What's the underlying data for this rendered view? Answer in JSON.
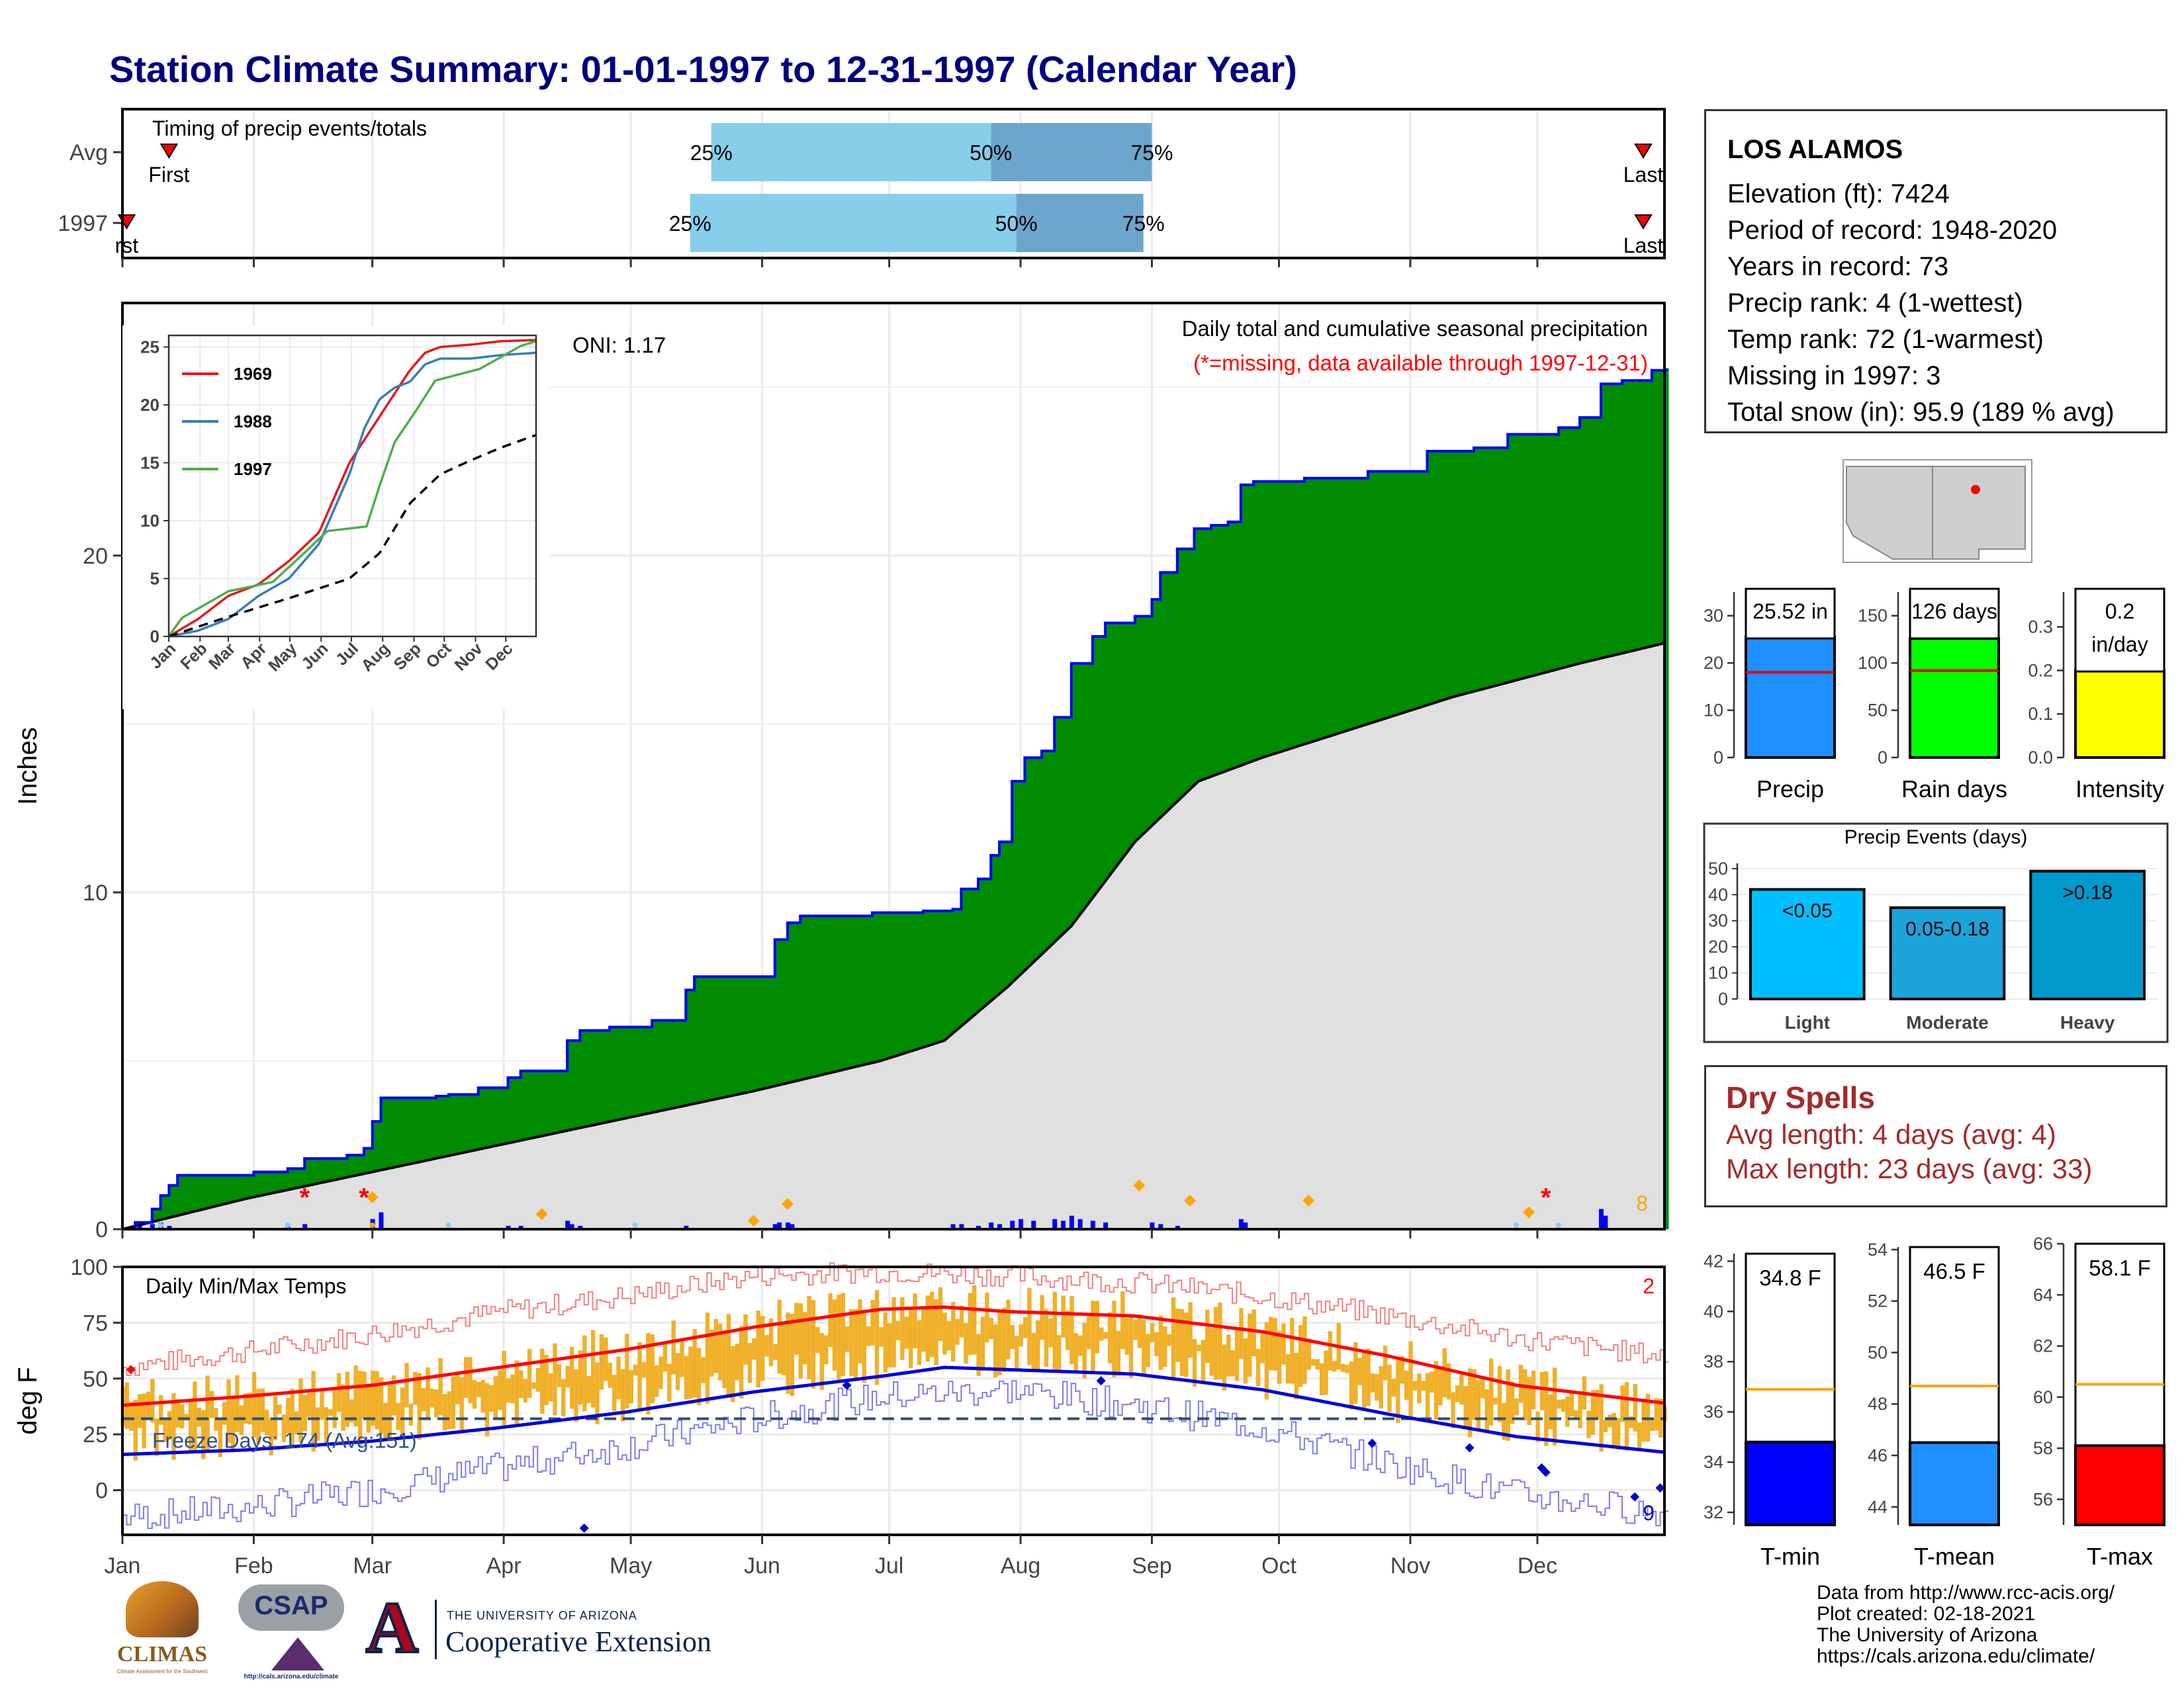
{
  "title": "Station Climate Summary: 01-01-1997 to 12-31-1997 (Calendar Year)",
  "months": [
    "Jan",
    "Feb",
    "Mar",
    "Apr",
    "May",
    "Jun",
    "Jul",
    "Aug",
    "Sep",
    "Oct",
    "Nov",
    "Dec"
  ],
  "timing": {
    "label": "Timing of precip events/totals",
    "rows": [
      {
        "name": "Avg",
        "first_label": "First",
        "last_label": "Last",
        "first_day": 12,
        "last_day": 360,
        "q25": 140,
        "q50": 206,
        "q75": 244,
        "q25_label": "25%",
        "q50_label": "50%",
        "q75_label": "75%"
      },
      {
        "name": "1997",
        "first_label": "rst",
        "last_label": "Last",
        "first_day": 2,
        "last_day": 360,
        "q25": 135,
        "q50": 212,
        "q75": 242,
        "q25_label": "25%",
        "q50_label": "50%",
        "q75_label": "75%"
      }
    ]
  },
  "precip": {
    "ylabel": "Inches",
    "subtitle": "Daily total and cumulative seasonal precipitation",
    "missing_note": "(*=missing, data available through 1997-12-31)",
    "oni_label": "ONI: 1.17",
    "corner_count": "8",
    "y_ticks": [
      "0",
      "10",
      "20"
    ]
  },
  "chart_data": [
    {
      "type": "area",
      "name": "cumulative-precip",
      "ylim": [
        0,
        27.5
      ],
      "xlim": [
        1,
        365
      ],
      "cumulative_1997": [
        [
          1,
          0
        ],
        [
          4,
          0.2
        ],
        [
          8,
          0.6
        ],
        [
          10,
          1.0
        ],
        [
          12,
          1.3
        ],
        [
          14,
          1.6
        ],
        [
          30,
          1.6
        ],
        [
          32,
          1.7
        ],
        [
          40,
          1.8
        ],
        [
          44,
          2.1
        ],
        [
          54,
          2.2
        ],
        [
          58,
          2.4
        ],
        [
          60,
          3.2
        ],
        [
          62,
          3.9
        ],
        [
          75,
          3.95
        ],
        [
          78,
          4.0
        ],
        [
          85,
          4.2
        ],
        [
          92,
          4.5
        ],
        [
          95,
          4.7
        ],
        [
          104,
          4.7
        ],
        [
          106,
          5.6
        ],
        [
          109,
          5.9
        ],
        [
          116,
          6.0
        ],
        [
          126,
          6.2
        ],
        [
          134,
          7.1
        ],
        [
          136,
          7.5
        ],
        [
          150,
          7.5
        ],
        [
          155,
          8.6
        ],
        [
          158,
          9.1
        ],
        [
          161,
          9.3
        ],
        [
          178,
          9.4
        ],
        [
          190,
          9.45
        ],
        [
          197,
          9.5
        ],
        [
          199,
          10.1
        ],
        [
          203,
          10.4
        ],
        [
          206,
          11.1
        ],
        [
          208,
          11.5
        ],
        [
          211,
          13.3
        ],
        [
          214,
          14.0
        ],
        [
          218,
          14.2
        ],
        [
          221,
          15.2
        ],
        [
          225,
          16.8
        ],
        [
          230,
          17.6
        ],
        [
          233,
          18.0
        ],
        [
          240,
          18.2
        ],
        [
          244,
          18.7
        ],
        [
          246,
          19.5
        ],
        [
          250,
          20.2
        ],
        [
          254,
          20.8
        ],
        [
          258,
          20.9
        ],
        [
          262,
          21.0
        ],
        [
          265,
          22.1
        ],
        [
          268,
          22.2
        ],
        [
          280,
          22.3
        ],
        [
          295,
          22.5
        ],
        [
          307,
          22.5
        ],
        [
          309,
          23.1
        ],
        [
          320,
          23.2
        ],
        [
          328,
          23.6
        ],
        [
          340,
          23.8
        ],
        [
          345,
          24.1
        ],
        [
          350,
          25.1
        ],
        [
          355,
          25.2
        ],
        [
          358,
          25.2
        ],
        [
          362,
          25.5
        ],
        [
          365,
          25.52
        ]
      ],
      "cumulative_avg": [
        [
          1,
          0
        ],
        [
          30,
          0.9
        ],
        [
          60,
          1.7
        ],
        [
          90,
          2.5
        ],
        [
          120,
          3.3
        ],
        [
          150,
          4.1
        ],
        [
          180,
          5.0
        ],
        [
          195,
          5.6
        ],
        [
          210,
          7.2
        ],
        [
          225,
          9.0
        ],
        [
          240,
          11.5
        ],
        [
          255,
          13.3
        ],
        [
          270,
          14.0
        ],
        [
          285,
          14.6
        ],
        [
          300,
          15.2
        ],
        [
          315,
          15.8
        ],
        [
          330,
          16.3
        ],
        [
          345,
          16.8
        ],
        [
          365,
          17.4
        ]
      ],
      "daily_precip": [
        [
          5,
          0.1
        ],
        [
          8,
          0.15
        ],
        [
          10,
          0.2
        ],
        [
          12,
          0.1
        ],
        [
          40,
          0.08
        ],
        [
          44,
          0.15
        ],
        [
          60,
          0.3
        ],
        [
          62,
          0.5
        ],
        [
          92,
          0.1
        ],
        [
          95,
          0.1
        ],
        [
          106,
          0.25
        ],
        [
          107,
          0.15
        ],
        [
          109,
          0.1
        ],
        [
          134,
          0.1
        ],
        [
          155,
          0.15
        ],
        [
          156,
          0.2
        ],
        [
          158,
          0.2
        ],
        [
          159,
          0.15
        ],
        [
          197,
          0.15
        ],
        [
          199,
          0.15
        ],
        [
          203,
          0.1
        ],
        [
          206,
          0.2
        ],
        [
          208,
          0.15
        ],
        [
          211,
          0.25
        ],
        [
          213,
          0.3
        ],
        [
          216,
          0.25
        ],
        [
          221,
          0.3
        ],
        [
          223,
          0.25
        ],
        [
          225,
          0.4
        ],
        [
          227,
          0.3
        ],
        [
          230,
          0.25
        ],
        [
          233,
          0.2
        ],
        [
          244,
          0.2
        ],
        [
          246,
          0.15
        ],
        [
          250,
          0.1
        ],
        [
          265,
          0.3
        ],
        [
          266,
          0.2
        ],
        [
          350,
          0.6
        ],
        [
          351,
          0.4
        ]
      ]
    },
    {
      "type": "line",
      "name": "inset-cumulative-comparison",
      "y_ticks": [
        0,
        5,
        10,
        15,
        20,
        25
      ],
      "ylim": [
        0,
        26
      ],
      "series": [
        {
          "name": "1969",
          "color": "#e41a1c",
          "values": [
            [
              1,
              0
            ],
            [
              30,
              1.5
            ],
            [
              60,
              3.5
            ],
            [
              90,
              4.5
            ],
            [
              120,
              6.5
            ],
            [
              150,
              9
            ],
            [
              180,
              15
            ],
            [
              195,
              17
            ],
            [
              210,
              19
            ],
            [
              225,
              21
            ],
            [
              240,
              23
            ],
            [
              255,
              24.5
            ],
            [
              270,
              25
            ],
            [
              300,
              25.2
            ],
            [
              330,
              25.5
            ],
            [
              365,
              25.6
            ]
          ]
        },
        {
          "name": "1988",
          "color": "#377eb8",
          "values": [
            [
              1,
              0
            ],
            [
              30,
              0.5
            ],
            [
              60,
              1.5
            ],
            [
              90,
              3.5
            ],
            [
              120,
              5
            ],
            [
              150,
              8
            ],
            [
              180,
              14
            ],
            [
              195,
              18
            ],
            [
              210,
              20.5
            ],
            [
              225,
              21.5
            ],
            [
              240,
              22
            ],
            [
              255,
              23.5
            ],
            [
              270,
              24
            ],
            [
              300,
              24
            ],
            [
              330,
              24.3
            ],
            [
              365,
              24.5
            ]
          ]
        },
        {
          "name": "1997",
          "color": "#4daf4a",
          "values": [
            [
              1,
              0
            ],
            [
              14,
              1.6
            ],
            [
              60,
              3.9
            ],
            [
              104,
              4.7
            ],
            [
              134,
              7.1
            ],
            [
              158,
              9.1
            ],
            [
              197,
              9.5
            ],
            [
              211,
              13.3
            ],
            [
              225,
              16.8
            ],
            [
              246,
              19.5
            ],
            [
              265,
              22.1
            ],
            [
              309,
              23.1
            ],
            [
              350,
              25.1
            ],
            [
              365,
              25.5
            ]
          ]
        },
        {
          "name": "avg",
          "color": "#000000",
          "values": [
            [
              1,
              0
            ],
            [
              60,
              1.7
            ],
            [
              120,
              3.3
            ],
            [
              180,
              5.0
            ],
            [
              210,
              7.2
            ],
            [
              240,
              11.5
            ],
            [
              270,
              14.0
            ],
            [
              300,
              15.2
            ],
            [
              330,
              16.3
            ],
            [
              365,
              17.4
            ]
          ]
        }
      ]
    },
    {
      "type": "line",
      "name": "daily-temps",
      "title": "Daily Min/Max Temps",
      "ylabel": "deg F",
      "ylim": [
        -20,
        100
      ],
      "y_ticks": [
        0,
        25,
        50,
        75,
        100
      ],
      "freeze_label": "Freeze Days: 174 (Avg:151)",
      "freeze_line": 32,
      "top_count": "2",
      "bottom_count": "9",
      "avg_max": [
        [
          1,
          38
        ],
        [
          30,
          42
        ],
        [
          60,
          47
        ],
        [
          90,
          55
        ],
        [
          120,
          63
        ],
        [
          150,
          73
        ],
        [
          180,
          81
        ],
        [
          195,
          82
        ],
        [
          210,
          80
        ],
        [
          240,
          78
        ],
        [
          270,
          71
        ],
        [
          300,
          60
        ],
        [
          330,
          47
        ],
        [
          365,
          39
        ]
      ],
      "avg_min": [
        [
          1,
          16
        ],
        [
          30,
          18
        ],
        [
          60,
          22
        ],
        [
          90,
          28
        ],
        [
          120,
          35
        ],
        [
          150,
          44
        ],
        [
          180,
          51
        ],
        [
          195,
          55
        ],
        [
          210,
          54
        ],
        [
          240,
          52
        ],
        [
          270,
          45
        ],
        [
          300,
          34
        ],
        [
          330,
          24
        ],
        [
          365,
          17
        ]
      ],
      "record_max": [
        [
          1,
          55
        ],
        [
          30,
          62
        ],
        [
          60,
          70
        ],
        [
          90,
          80
        ],
        [
          120,
          87
        ],
        [
          150,
          96
        ],
        [
          180,
          98
        ],
        [
          210,
          96
        ],
        [
          240,
          93
        ],
        [
          270,
          87
        ],
        [
          300,
          78
        ],
        [
          330,
          68
        ],
        [
          365,
          60
        ]
      ],
      "record_min": [
        [
          1,
          -12
        ],
        [
          30,
          -8
        ],
        [
          60,
          0
        ],
        [
          90,
          10
        ],
        [
          120,
          20
        ],
        [
          150,
          32
        ],
        [
          180,
          42
        ],
        [
          210,
          45
        ],
        [
          240,
          38
        ],
        [
          270,
          28
        ],
        [
          300,
          12
        ],
        [
          330,
          -2
        ],
        [
          365,
          -10
        ]
      ]
    },
    {
      "type": "bar",
      "name": "precip-totals",
      "panels": [
        {
          "label": "Precip",
          "value_label": "25.52 in",
          "value": 25.52,
          "avg": 18,
          "ylim": [
            0,
            35
          ],
          "ticks": [
            0,
            10,
            20,
            30
          ],
          "color": "#1e90ff"
        },
        {
          "label": "Rain days",
          "value_label": "126 days",
          "value": 126,
          "avg": 92,
          "ylim": [
            0,
            175
          ],
          "ticks": [
            0,
            50,
            100,
            150
          ],
          "color": "#00ff00"
        },
        {
          "label": "Intensity",
          "value_label": "0.2",
          "value_label2": "in/day",
          "value": 0.2,
          "avg": 0.2,
          "ylim": [
            0,
            0.38
          ],
          "ticks": [
            "0.0",
            "0.1",
            "0.2",
            "0.3"
          ],
          "color": "#ffff00"
        }
      ]
    },
    {
      "type": "bar",
      "name": "precip-events",
      "title": "Precip Events (days)",
      "categories": [
        "Light",
        "Moderate",
        "Heavy"
      ],
      "value_labels": [
        "<0.05",
        "0.05-0.18",
        ">0.18"
      ],
      "values": [
        42,
        35,
        49
      ],
      "colors": [
        "#00bfff",
        "#1ba3dc",
        "#0099cc"
      ],
      "ylim": [
        0,
        52
      ],
      "ticks": [
        0,
        10,
        20,
        30,
        40,
        50
      ]
    },
    {
      "type": "bar",
      "name": "temp-means",
      "panels": [
        {
          "label": "T-min",
          "value_label": "34.8 F",
          "value": 34.8,
          "avg": 36.9,
          "ylim": [
            31.5,
            42.3
          ],
          "ticks": [
            32,
            34,
            36,
            38,
            40,
            42
          ],
          "color": "#0000ff"
        },
        {
          "label": "T-mean",
          "value_label": "46.5 F",
          "value": 46.5,
          "avg": 48.7,
          "ylim": [
            43.3,
            54.1
          ],
          "ticks": [
            44,
            46,
            48,
            50,
            52,
            54
          ],
          "color": "#1e90ff"
        },
        {
          "label": "T-max",
          "value_label": "58.1 F",
          "value": 58.1,
          "avg": 60.5,
          "ylim": [
            55.0,
            66.0
          ],
          "ticks": [
            56,
            58,
            60,
            62,
            64,
            66
          ],
          "color": "#ff0000"
        }
      ]
    }
  ],
  "station": {
    "name": "LOS ALAMOS",
    "lines": [
      "Elevation (ft): 7424",
      "Period of record: 1948-2020",
      "Years in record: 73",
      "Precip rank: 4 (1-wettest)",
      "Temp rank: 72 (1-warmest)",
      "Missing in 1997: 3",
      "Total snow (in): 95.9 (189 % avg)"
    ]
  },
  "dry_spells": {
    "title": "Dry Spells",
    "avg": "Avg length: 4 days (avg: 4)",
    "max": "Max length: 23 days (avg: 33)"
  },
  "credits": [
    "Data from http://www.rcc-acis.org/",
    "Plot created: 02-18-2021",
    "The University of Arizona",
    "https://cals.arizona.edu/climate/"
  ],
  "logos": {
    "climas": "CLIMAS",
    "climas_sub": "Climate Assessment for the Southwest",
    "csap": "CSAP",
    "csap_url": "http://cals.arizona.edu/climate",
    "ua_top": "THE UNIVERSITY OF ARIZONA",
    "ua_bottom": "Cooperative Extension",
    "ua_letter": "A"
  }
}
